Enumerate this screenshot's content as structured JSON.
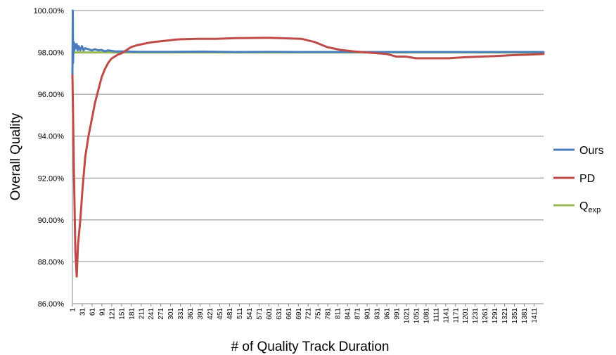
{
  "chart_data": {
    "type": "line",
    "xlabel": "# of Quality Track Duration",
    "ylabel": "Overall Quality",
    "ylim": [
      0.86,
      1.0
    ],
    "xlim": [
      1,
      1440
    ],
    "y_ticks": [
      "86.00%",
      "88.00%",
      "90.00%",
      "92.00%",
      "94.00%",
      "96.00%",
      "98.00%",
      "100.00%"
    ],
    "x_ticks": [
      "1",
      "31",
      "61",
      "91",
      "121",
      "151",
      "181",
      "211",
      "241",
      "271",
      "301",
      "331",
      "361",
      "391",
      "421",
      "451",
      "481",
      "511",
      "541",
      "571",
      "601",
      "631",
      "661",
      "691",
      "721",
      "751",
      "781",
      "811",
      "841",
      "871",
      "901",
      "931",
      "961",
      "991",
      "1021",
      "1051",
      "1081",
      "1111",
      "1141",
      "1171",
      "1201",
      "1231",
      "1261",
      "1291",
      "1321",
      "1351",
      "1381",
      "1411"
    ],
    "grid": "horizontal",
    "legend_position": "right",
    "series": [
      {
        "name": "Ours",
        "color": "#4a7ebb",
        "points": [
          [
            1,
            0.968
          ],
          [
            2,
            1.0
          ],
          [
            3,
            0.975
          ],
          [
            4,
            0.982
          ],
          [
            5,
            0.985
          ],
          [
            7,
            0.981
          ],
          [
            9,
            0.984
          ],
          [
            11,
            0.982
          ],
          [
            14,
            0.984
          ],
          [
            17,
            0.981
          ],
          [
            20,
            0.983
          ],
          [
            25,
            0.981
          ],
          [
            30,
            0.983
          ],
          [
            35,
            0.981
          ],
          [
            40,
            0.982
          ],
          [
            50,
            0.9815
          ],
          [
            60,
            0.981
          ],
          [
            70,
            0.9815
          ],
          [
            80,
            0.981
          ],
          [
            90,
            0.9812
          ],
          [
            100,
            0.9805
          ],
          [
            110,
            0.981
          ],
          [
            130,
            0.9805
          ],
          [
            160,
            0.9805
          ],
          [
            200,
            0.9803
          ],
          [
            300,
            0.9803
          ],
          [
            400,
            0.9804
          ],
          [
            500,
            0.9802
          ],
          [
            600,
            0.9803
          ],
          [
            700,
            0.9802
          ],
          [
            800,
            0.9802
          ],
          [
            900,
            0.9802
          ],
          [
            1000,
            0.9802
          ],
          [
            1100,
            0.9802
          ],
          [
            1200,
            0.9802
          ],
          [
            1300,
            0.9802
          ],
          [
            1440,
            0.9802
          ]
        ]
      },
      {
        "name": "PD",
        "color": "#be4b48",
        "points": [
          [
            1,
            0.969
          ],
          [
            3,
            0.95
          ],
          [
            6,
            0.92
          ],
          [
            10,
            0.885
          ],
          [
            14,
            0.873
          ],
          [
            18,
            0.888
          ],
          [
            25,
            0.9
          ],
          [
            32,
            0.915
          ],
          [
            40,
            0.93
          ],
          [
            50,
            0.94
          ],
          [
            60,
            0.948
          ],
          [
            70,
            0.956
          ],
          [
            80,
            0.962
          ],
          [
            90,
            0.968
          ],
          [
            100,
            0.972
          ],
          [
            110,
            0.975
          ],
          [
            120,
            0.977
          ],
          [
            130,
            0.978
          ],
          [
            140,
            0.979
          ],
          [
            150,
            0.9795
          ],
          [
            160,
            0.9805
          ],
          [
            180,
            0.9825
          ],
          [
            200,
            0.9835
          ],
          [
            240,
            0.9848
          ],
          [
            280,
            0.9855
          ],
          [
            320,
            0.9862
          ],
          [
            380,
            0.9865
          ],
          [
            440,
            0.9865
          ],
          [
            500,
            0.9868
          ],
          [
            600,
            0.987
          ],
          [
            700,
            0.9865
          ],
          [
            740,
            0.985
          ],
          [
            780,
            0.9825
          ],
          [
            820,
            0.9812
          ],
          [
            860,
            0.9805
          ],
          [
            900,
            0.98
          ],
          [
            960,
            0.9793
          ],
          [
            990,
            0.978
          ],
          [
            1020,
            0.978
          ],
          [
            1050,
            0.9772
          ],
          [
            1100,
            0.9772
          ],
          [
            1150,
            0.9772
          ],
          [
            1200,
            0.9777
          ],
          [
            1250,
            0.978
          ],
          [
            1300,
            0.9783
          ],
          [
            1350,
            0.9787
          ],
          [
            1400,
            0.979
          ],
          [
            1440,
            0.9793
          ]
        ]
      },
      {
        "name": "Q",
        "name_subscript": "exp",
        "color": "#98b954",
        "points": [
          [
            1,
            0.98
          ],
          [
            1440,
            0.98
          ]
        ]
      }
    ]
  }
}
